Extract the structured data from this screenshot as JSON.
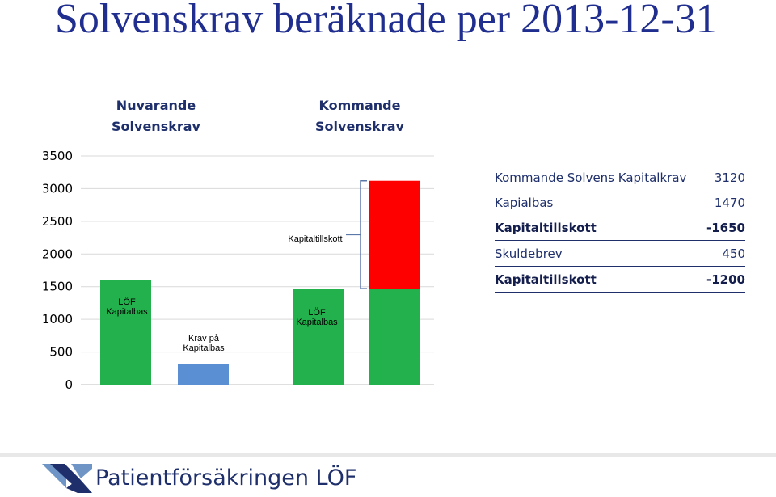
{
  "title": "Solvenskrav beräknade per 2013-12-31",
  "columns": {
    "current": [
      "Nuvarande",
      "Solvenskrav"
    ],
    "coming": [
      "Kommande",
      "Solvenskrav"
    ]
  },
  "chart_data": {
    "type": "bar",
    "ylim": [
      0,
      3500
    ],
    "yticks": [
      0,
      500,
      1000,
      1500,
      2000,
      2500,
      3000,
      3500
    ],
    "grid": true,
    "bars": [
      {
        "label": "LÖF Kapitalbas",
        "label_lines": [
          "LÖF",
          "Kapitalbas"
        ],
        "value": 1600,
        "base": 0,
        "color": "#22b14c"
      },
      {
        "label": "Krav på Kapitalbas",
        "label_lines": [
          "Krav på",
          "Kapitalbas"
        ],
        "value": 320,
        "base": 0,
        "color": "#5b8fd4"
      },
      {
        "label": "LÖF Kapitalbas",
        "label_lines": [
          "LÖF",
          "Kapitalbas"
        ],
        "value": 1470,
        "base": 0,
        "color": "#22b14c"
      },
      {
        "label": "",
        "label_lines": [],
        "value": 3120,
        "base": 0,
        "color": "#22b14c",
        "top_segment": {
          "from": 1470,
          "to": 3120,
          "color": "#ff0000"
        }
      }
    ],
    "annotation": {
      "label": "Kapitaltillskott",
      "from": 1470,
      "to": 3120
    }
  },
  "summary": [
    {
      "label": "Kommande Solvens Kapitalkrav",
      "value": "3120",
      "bold": false,
      "underline": false
    },
    {
      "label": "Kapialbas",
      "value": "1470",
      "bold": false,
      "underline": false
    },
    {
      "label": "Kapitaltillskott",
      "value": "-1650",
      "bold": true,
      "underline": true
    },
    {
      "label": "Skuldebrev",
      "value": "450",
      "bold": false,
      "underline": true
    },
    {
      "label": "Kapitaltillskott",
      "value": "-1200",
      "bold": true,
      "underline": true
    }
  ],
  "footer": {
    "brand": "Patientförsäkringen LÖF"
  },
  "colors": {
    "title": "#1f2e8f",
    "text": "#1e2f6b",
    "green": "#22b14c",
    "blue": "#5b8fd4",
    "red": "#ff0000",
    "grid": "#d9d9d9"
  }
}
